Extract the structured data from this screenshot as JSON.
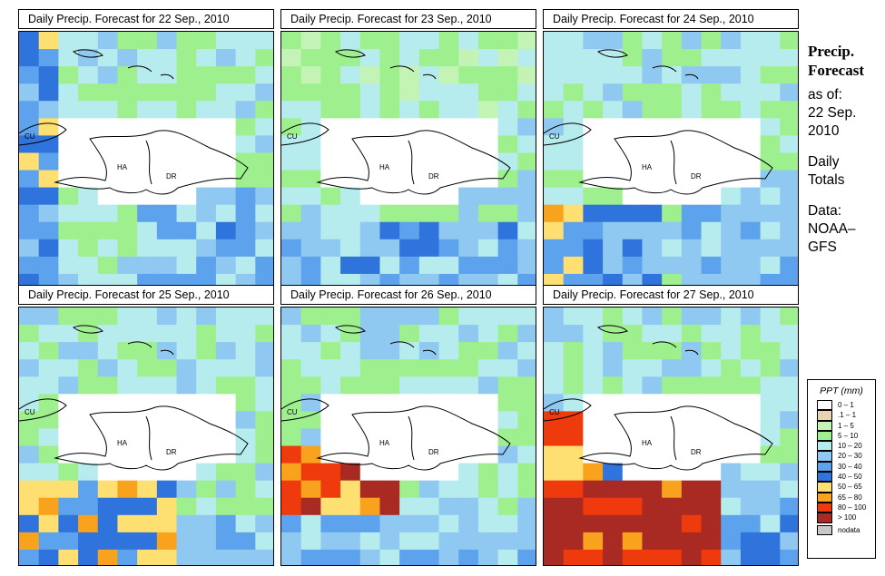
{
  "panels": [
    {
      "title": "Daily Precip. Forecast for  22 Sep., 2010"
    },
    {
      "title": "Daily Precip. Forecast for  23 Sep., 2010"
    },
    {
      "title": "Daily Precip. Forecast for  24 Sep., 2010"
    },
    {
      "title": "Daily Precip. Forecast for  25 Sep., 2010"
    },
    {
      "title": "Daily Precip. Forecast for  26 Sep., 2010"
    },
    {
      "title": "Daily Precip. Forecast for  27 Sep., 2010"
    }
  ],
  "map_labels": {
    "cuba": "CU",
    "haiti": "HA",
    "dominican_republic": "DR"
  },
  "sidebar": {
    "heading_1": "Precip.",
    "heading_2": "Forecast",
    "as_of": "as of:",
    "date_1": "22 Sep.",
    "date_2": "2010",
    "daily_1": "Daily",
    "daily_2": "Totals",
    "data_1": "Data:",
    "data_2": "NOAA–",
    "data_3": "GFS"
  },
  "legend": {
    "title": "PPT (mm)",
    "items": [
      {
        "label": "0 – 1",
        "color": "#ffffff"
      },
      {
        "label": ".1 – 1",
        "color": "#e9d2b4"
      },
      {
        "label": "1 – 5",
        "color": "#c4f3b6"
      },
      {
        "label": "5 – 10",
        "color": "#9ef08e"
      },
      {
        "label": "10 – 20",
        "color": "#b6ecee"
      },
      {
        "label": "20 – 30",
        "color": "#8fc8f0"
      },
      {
        "label": "30 – 40",
        "color": "#5da2ec"
      },
      {
        "label": "40 – 50",
        "color": "#2f74dc"
      },
      {
        "label": "50 – 65",
        "color": "#fde071"
      },
      {
        "label": "65 – 80",
        "color": "#f9a21e"
      },
      {
        "label": "80 – 100",
        "color": "#ee3a0c"
      },
      {
        "label": "> 100",
        "color": "#a82a22"
      },
      {
        "label": "nodata",
        "color": "#c8c8c8"
      }
    ]
  }
}
